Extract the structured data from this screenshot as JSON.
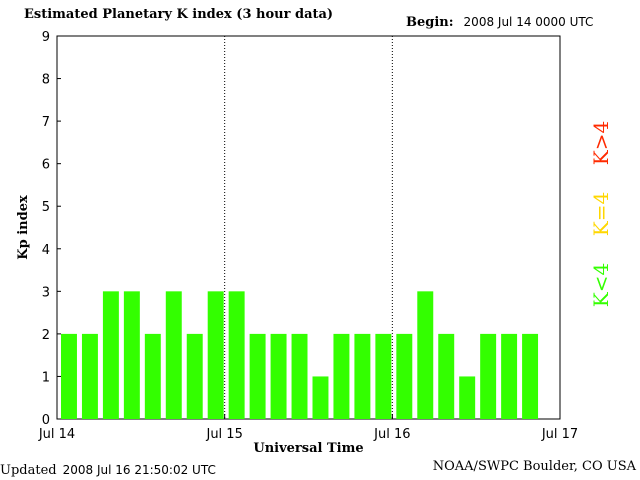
{
  "header": {
    "title": "Estimated Planetary K index (3 hour data)",
    "begin_label": "Begin:",
    "begin_value": "2008 Jul 14 0000 UTC"
  },
  "footer": {
    "updated_label": "Updated",
    "updated_value": "2008 Jul 16 21:50:02 UTC",
    "credit": "NOAA/SWPC Boulder, CO USA"
  },
  "legend": [
    {
      "label": "K>4",
      "color": "#ff2a00"
    },
    {
      "label": "K=4",
      "color": "#ffd700"
    },
    {
      "label": "K<4",
      "color": "#33ff00"
    }
  ],
  "chart_data": {
    "type": "bar",
    "title": "Estimated Planetary K index (3 hour data)",
    "xlabel": "Universal Time",
    "ylabel": "Kp index",
    "ylim": [
      0,
      9
    ],
    "yticks": [
      0,
      1,
      2,
      3,
      4,
      5,
      6,
      7,
      8,
      9
    ],
    "xticks": [
      "Jul 14",
      "Jul 15",
      "Jul 16",
      "Jul 17"
    ],
    "day_dividers": [
      "Jul 15",
      "Jul 16"
    ],
    "interval_hours": 3,
    "start": "2008 Jul 14 0000 UTC",
    "values": [
      2,
      2,
      3,
      3,
      2,
      3,
      2,
      3,
      3,
      2,
      2,
      2,
      1,
      2,
      2,
      2,
      2,
      3,
      2,
      1,
      2,
      2,
      2
    ],
    "bar_color": "#33ff00",
    "grid": false
  }
}
